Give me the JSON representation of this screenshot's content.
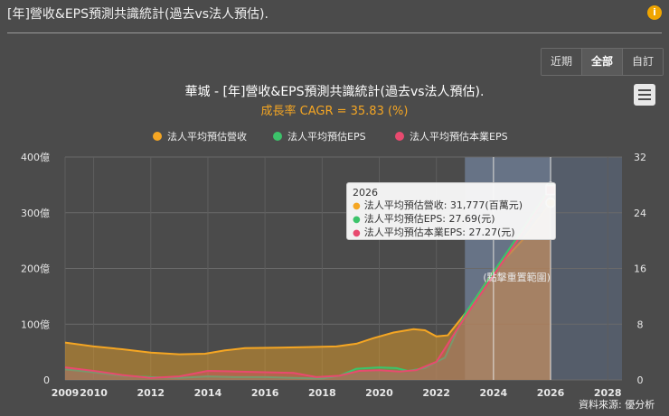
{
  "page": {
    "title": "[年]營收&EPS預測共識統計(過去vs法人預估).",
    "info_icon": "i"
  },
  "toolbar": {
    "tabs": [
      {
        "label": "近期",
        "active": false
      },
      {
        "label": "全部",
        "active": true
      },
      {
        "label": "自訂",
        "active": false
      }
    ],
    "menu_icon": "hamburger-menu-icon"
  },
  "chart_data": {
    "type": "area",
    "title": "華城 - [年]營收&EPS預測共識統計(過去vs法人預估).",
    "subtitle": "成長率 CAGR = 35.83 (%)",
    "legend_position": "top-center",
    "grid": true,
    "y_left": {
      "ticks": [
        "0",
        "100億",
        "200億",
        "300億",
        "400億"
      ],
      "range": [
        0,
        400
      ],
      "unit": "億"
    },
    "y_right": {
      "ticks": [
        "0",
        "8",
        "16",
        "24",
        "32"
      ],
      "range": [
        0,
        32
      ]
    },
    "x": {
      "ticks": [
        "2009",
        "2010",
        "2012",
        "2014",
        "2016",
        "2018",
        "2020",
        "2022",
        "2024",
        "2026",
        "2028"
      ],
      "range": [
        2009,
        2028.5
      ]
    },
    "plot_bands": [
      {
        "from": 2023,
        "to": 2026,
        "label": "(點擊重置範圍)"
      },
      {
        "from": 2026,
        "to": 2028.5,
        "label": ""
      }
    ],
    "crosshair_years": [
      2024,
      2026
    ],
    "series": [
      {
        "name": "法人平均預估營收",
        "color": "#f5a623",
        "axis": "left",
        "unit": "億",
        "points": [
          [
            2009,
            67
          ],
          [
            2010,
            60
          ],
          [
            2011,
            55
          ],
          [
            2012,
            49
          ],
          [
            2013,
            46
          ],
          [
            2013.9,
            47
          ],
          [
            2014.6,
            53
          ],
          [
            2015.3,
            57
          ],
          [
            2016.5,
            58
          ],
          [
            2017.5,
            59
          ],
          [
            2018.5,
            60
          ],
          [
            2019.2,
            65
          ],
          [
            2019.8,
            75
          ],
          [
            2020.5,
            85
          ],
          [
            2021.2,
            91
          ],
          [
            2021.6,
            89
          ],
          [
            2022,
            78
          ],
          [
            2022.4,
            80
          ],
          [
            2023.1,
            125
          ],
          [
            2024,
            195
          ],
          [
            2025,
            250
          ],
          [
            2026,
            318
          ]
        ]
      },
      {
        "name": "法人平均預估EPS",
        "color": "#3cc36a",
        "axis": "right",
        "points": [
          [
            2009,
            1.5
          ],
          [
            2010,
            1.1
          ],
          [
            2011,
            0.6
          ],
          [
            2012,
            0.4
          ],
          [
            2013,
            0.3
          ],
          [
            2014,
            0.5
          ],
          [
            2015,
            0.4
          ],
          [
            2016,
            0.4
          ],
          [
            2017,
            0.3
          ],
          [
            2018,
            0.2
          ],
          [
            2018.6,
            0.6
          ],
          [
            2019.2,
            1.6
          ],
          [
            2020,
            1.8
          ],
          [
            2020.6,
            1.7
          ],
          [
            2021,
            1.3
          ],
          [
            2021.6,
            1.7
          ],
          [
            2022.3,
            3.2
          ],
          [
            2023,
            9.5
          ],
          [
            2024,
            15.5
          ],
          [
            2025,
            21.5
          ],
          [
            2026,
            27.69
          ]
        ]
      },
      {
        "name": "法人平均預估本業EPS",
        "color": "#e84a6f",
        "axis": "right",
        "points": [
          [
            2009,
            1.8
          ],
          [
            2010,
            1.3
          ],
          [
            2011,
            0.7
          ],
          [
            2012,
            0.3
          ],
          [
            2013,
            0.5
          ],
          [
            2014,
            1.3
          ],
          [
            2015,
            1.2
          ],
          [
            2016,
            1.1
          ],
          [
            2017,
            1.0
          ],
          [
            2017.8,
            0.4
          ],
          [
            2018.6,
            0.6
          ],
          [
            2019.3,
            1.3
          ],
          [
            2020,
            1.4
          ],
          [
            2020.7,
            1.2
          ],
          [
            2021.3,
            1.4
          ],
          [
            2022,
            2.6
          ],
          [
            2023,
            9.0
          ],
          [
            2024,
            15.0
          ],
          [
            2025,
            21.0
          ],
          [
            2026,
            27.27
          ]
        ]
      }
    ]
  },
  "tooltip": {
    "year": "2026",
    "rows": [
      {
        "label": "法人平均預估營收: 31,777(百萬元)",
        "color": "#f5a623"
      },
      {
        "label": "法人平均預估EPS: 27.69(元)",
        "color": "#3cc36a"
      },
      {
        "label": "法人平均預估本業EPS: 27.27(元)",
        "color": "#e84a6f"
      }
    ]
  },
  "source": "資料來源: 優分析"
}
